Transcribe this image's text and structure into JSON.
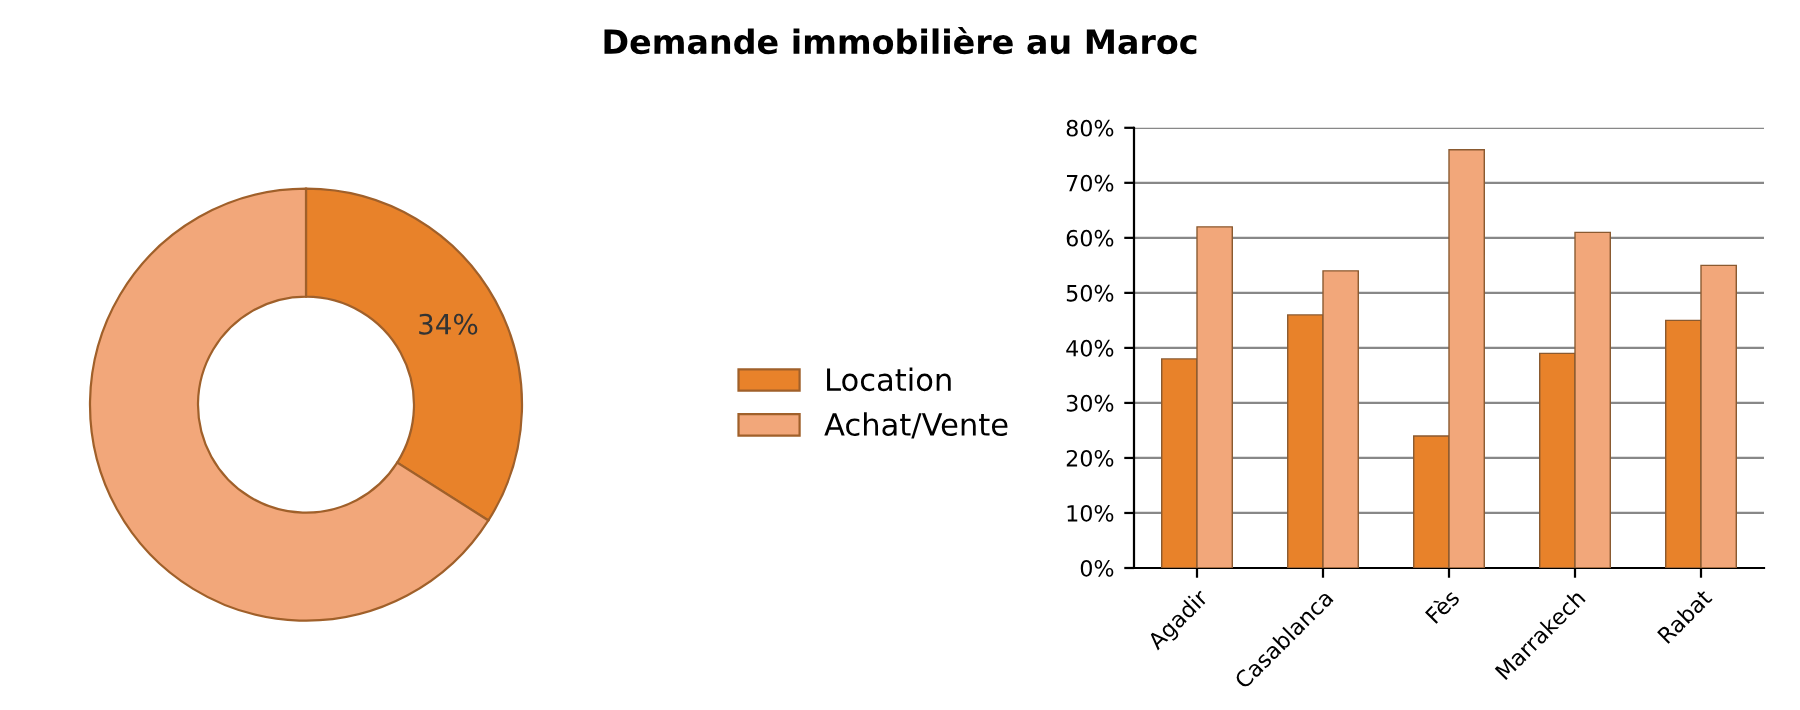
{
  "chart_data": [
    {
      "type": "donut",
      "title": "Demande immobilière au Maroc",
      "categories": [
        "Location",
        "Achat/Vente"
      ],
      "values": [
        34,
        66
      ],
      "colors": [
        "#e8822a",
        "#f2a77a"
      ],
      "value_labels": [
        "34%",
        null
      ],
      "legend": "right"
    },
    {
      "type": "bar",
      "categories": [
        "Agadir",
        "Casablanca",
        "Fès",
        "Marrakech",
        "Rabat"
      ],
      "series": [
        {
          "color": "#e8822a",
          "values": [
            38,
            46,
            24,
            39,
            45
          ]
        },
        {
          "color": "#f2a77a",
          "values": [
            62,
            54,
            76,
            61,
            55
          ]
        }
      ],
      "ylim": [
        0,
        80
      ],
      "yticks": [
        {
          "value": 0,
          "label": "0%"
        },
        {
          "value": 10,
          "label": "10%"
        },
        {
          "value": 20,
          "label": "20%"
        },
        {
          "value": 30,
          "label": "30%"
        },
        {
          "value": 40,
          "label": "40%"
        },
        {
          "value": 50,
          "label": "50%"
        },
        {
          "value": 60,
          "label": "60%"
        },
        {
          "value": 70,
          "label": "70%"
        },
        {
          "value": 80,
          "label": "80%"
        }
      ],
      "grid": "y"
    }
  ]
}
